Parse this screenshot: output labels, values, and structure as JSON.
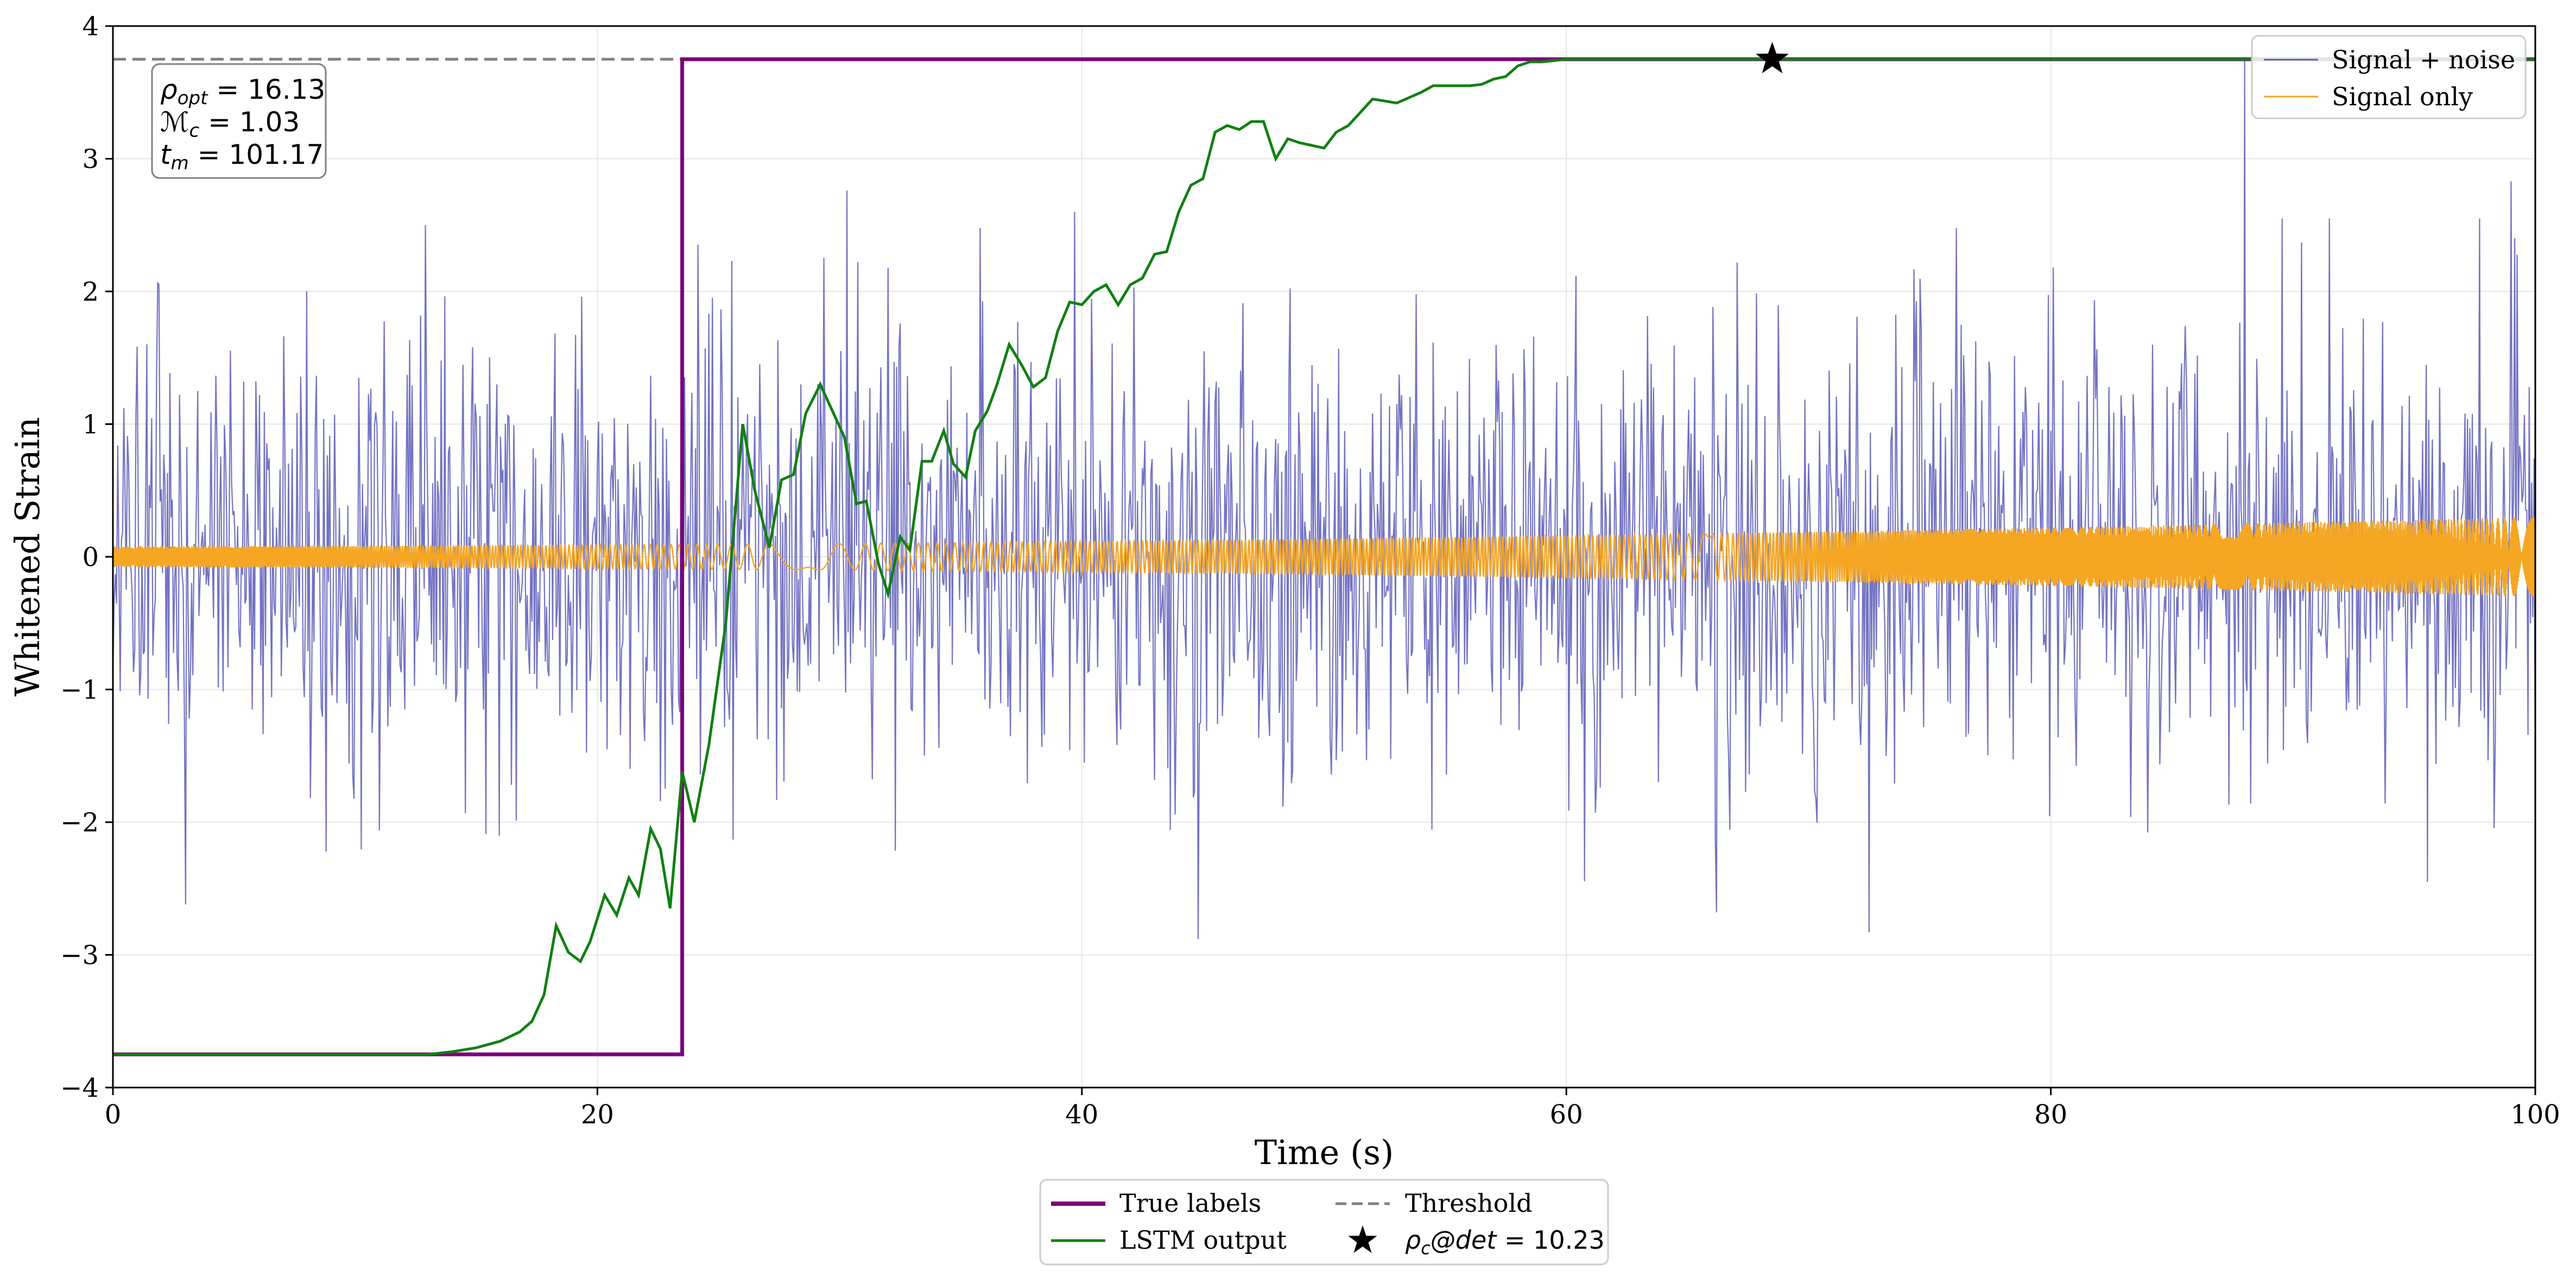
{
  "chart_data": {
    "type": "line",
    "xlabel": "Time (s)",
    "ylabel": "Whitened Strain",
    "xlim": [
      0,
      100
    ],
    "ylim": [
      -4,
      4
    ],
    "x_ticks": [
      0,
      20,
      40,
      60,
      80,
      100
    ],
    "x_tick_labels": [
      "0",
      "20",
      "40",
      "60",
      "80",
      "100"
    ],
    "y_ticks": [
      -4,
      -3,
      -2,
      -1,
      0,
      1,
      2,
      3,
      4
    ],
    "y_tick_labels": [
      "−4",
      "−3",
      "−2",
      "−1",
      "0",
      "1",
      "2",
      "3",
      "4"
    ],
    "grid": true,
    "series": [
      {
        "name": "Signal + noise",
        "color": "#5b5bb8",
        "sample_rate": 20,
        "amplitude_std": 0.85,
        "peak_values": [
          {
            "x": 88.0,
            "y": 3.75
          },
          {
            "x": 3.0,
            "y": -2.62
          },
          {
            "x": 44.8,
            "y": -2.88
          },
          {
            "x": 72.5,
            "y": -2.83
          },
          {
            "x": 66.2,
            "y": -2.68
          },
          {
            "x": 99.0,
            "y": 2.83
          },
          {
            "x": 30.3,
            "y": 2.76
          },
          {
            "x": 39.7,
            "y": 2.6
          }
        ]
      },
      {
        "name": "Signal only",
        "color": "#f5a623",
        "amplitude_start": 0.08,
        "amplitude_end": 0.3
      },
      {
        "name": "True labels",
        "color": "#7b007b",
        "x": [
          0,
          23.5,
          23.5,
          100
        ],
        "y": [
          -3.75,
          -3.75,
          3.75,
          3.75
        ]
      },
      {
        "name": "LSTM output",
        "color": "#118011",
        "x": [
          0,
          13.0,
          14.0,
          15.0,
          16.0,
          16.8,
          17.3,
          17.8,
          18.3,
          18.8,
          19.3,
          19.7,
          20.3,
          20.8,
          21.3,
          21.7,
          22.2,
          22.6,
          23.0,
          23.5,
          24.0,
          24.6,
          25.3,
          26.0,
          26.5,
          27.1,
          27.6,
          28.1,
          28.6,
          29.2,
          29.7,
          30.2,
          30.7,
          31.1,
          31.6,
          32.0,
          32.5,
          32.9,
          33.4,
          33.8,
          34.3,
          34.7,
          35.2,
          35.6,
          36.1,
          36.5,
          37.0,
          37.5,
          38.0,
          38.5,
          39.0,
          39.5,
          40.0,
          40.5,
          41.0,
          41.5,
          42.0,
          42.5,
          43.0,
          43.5,
          44.0,
          44.5,
          45.0,
          45.5,
          46.0,
          46.5,
          47.0,
          47.5,
          48.0,
          48.5,
          49.0,
          49.5,
          50.0,
          50.5,
          51.0,
          51.5,
          52.0,
          53.0,
          54.0,
          54.5,
          55.0,
          56.0,
          56.5,
          57.0,
          57.5,
          58.0,
          58.5,
          59.0,
          59.5,
          60.0,
          61.0,
          62.0,
          63.0,
          64.0,
          65.0,
          66.0,
          67.0,
          68.0,
          68.5,
          100
        ],
        "y": [
          -3.75,
          -3.75,
          -3.73,
          -3.7,
          -3.65,
          -3.58,
          -3.5,
          -3.3,
          -2.78,
          -2.98,
          -3.05,
          -2.9,
          -2.55,
          -2.7,
          -2.42,
          -2.55,
          -2.05,
          -2.2,
          -2.65,
          -1.62,
          -2.0,
          -1.42,
          -0.5,
          1.0,
          0.5,
          0.07,
          0.58,
          0.62,
          1.08,
          1.3,
          1.1,
          0.9,
          0.4,
          0.42,
          -0.05,
          -0.28,
          0.15,
          0.05,
          0.72,
          0.72,
          0.95,
          0.7,
          0.6,
          0.95,
          1.1,
          1.3,
          1.6,
          1.45,
          1.28,
          1.35,
          1.7,
          1.92,
          1.9,
          2.0,
          2.05,
          1.9,
          2.05,
          2.1,
          2.28,
          2.3,
          2.6,
          2.8,
          2.85,
          3.2,
          3.25,
          3.22,
          3.28,
          3.28,
          3.0,
          3.15,
          3.12,
          3.1,
          3.08,
          3.2,
          3.25,
          3.35,
          3.45,
          3.42,
          3.5,
          3.55,
          3.55,
          3.55,
          3.56,
          3.6,
          3.62,
          3.7,
          3.73,
          3.73,
          3.74,
          3.75,
          3.75,
          3.75,
          3.75,
          3.75,
          3.75,
          3.75,
          3.75,
          3.75,
          3.75,
          3.75
        ]
      },
      {
        "name": "Threshold",
        "color": "#808080",
        "y": 3.75
      }
    ],
    "detection_marker": {
      "x": 68.5,
      "y": 3.75,
      "label": "ρc@det = 10.23"
    },
    "annotation": {
      "rho_opt": "16.13",
      "Mc": "1.03",
      "tm": "101.17"
    },
    "legend_upper": {
      "placement": "top-right",
      "entries": [
        "Signal + noise",
        "Signal only"
      ]
    },
    "legend_lower": {
      "placement": "bottom-center",
      "entries": [
        "True labels",
        "Threshold",
        "LSTM output",
        "ρc@det = 10.23"
      ]
    }
  }
}
